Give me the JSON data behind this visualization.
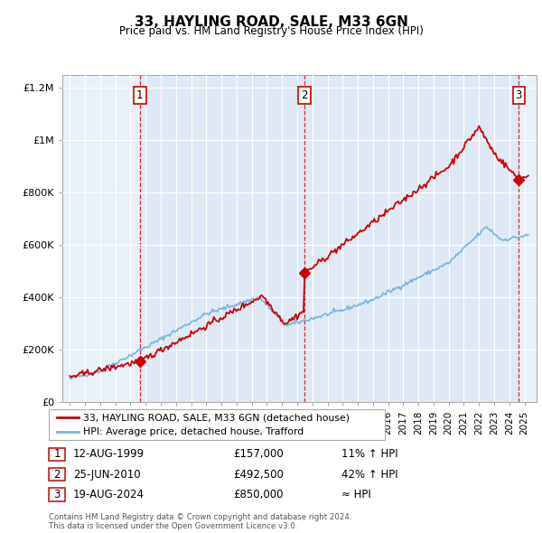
{
  "title": "33, HAYLING ROAD, SALE, M33 6GN",
  "subtitle": "Price paid vs. HM Land Registry's House Price Index (HPI)",
  "legend_line1": "33, HAYLING ROAD, SALE, M33 6GN (detached house)",
  "legend_line2": "HPI: Average price, detached house, Trafford",
  "transactions": [
    {
      "num": 1,
      "date": "12-AUG-1999",
      "price": 157000,
      "note": "11% ↑ HPI",
      "year": 1999.62
    },
    {
      "num": 2,
      "date": "25-JUN-2010",
      "price": 492500,
      "note": "42% ↑ HPI",
      "year": 2010.48
    },
    {
      "num": 3,
      "date": "19-AUG-2024",
      "price": 850000,
      "note": "≈ HPI",
      "year": 2024.62
    }
  ],
  "footer_line1": "Contains HM Land Registry data © Crown copyright and database right 2024.",
  "footer_line2": "This data is licensed under the Open Government Licence v3.0.",
  "hpi_color": "#7ab3d9",
  "price_color": "#cc0000",
  "background_chart": "#e8f0f8",
  "shade_color": "#dce8f5",
  "ylim": [
    0,
    1250000
  ],
  "yticks": [
    0,
    200000,
    400000,
    600000,
    800000,
    1000000,
    1200000
  ],
  "xlim_start": 1994.5,
  "xlim_end": 2025.8
}
